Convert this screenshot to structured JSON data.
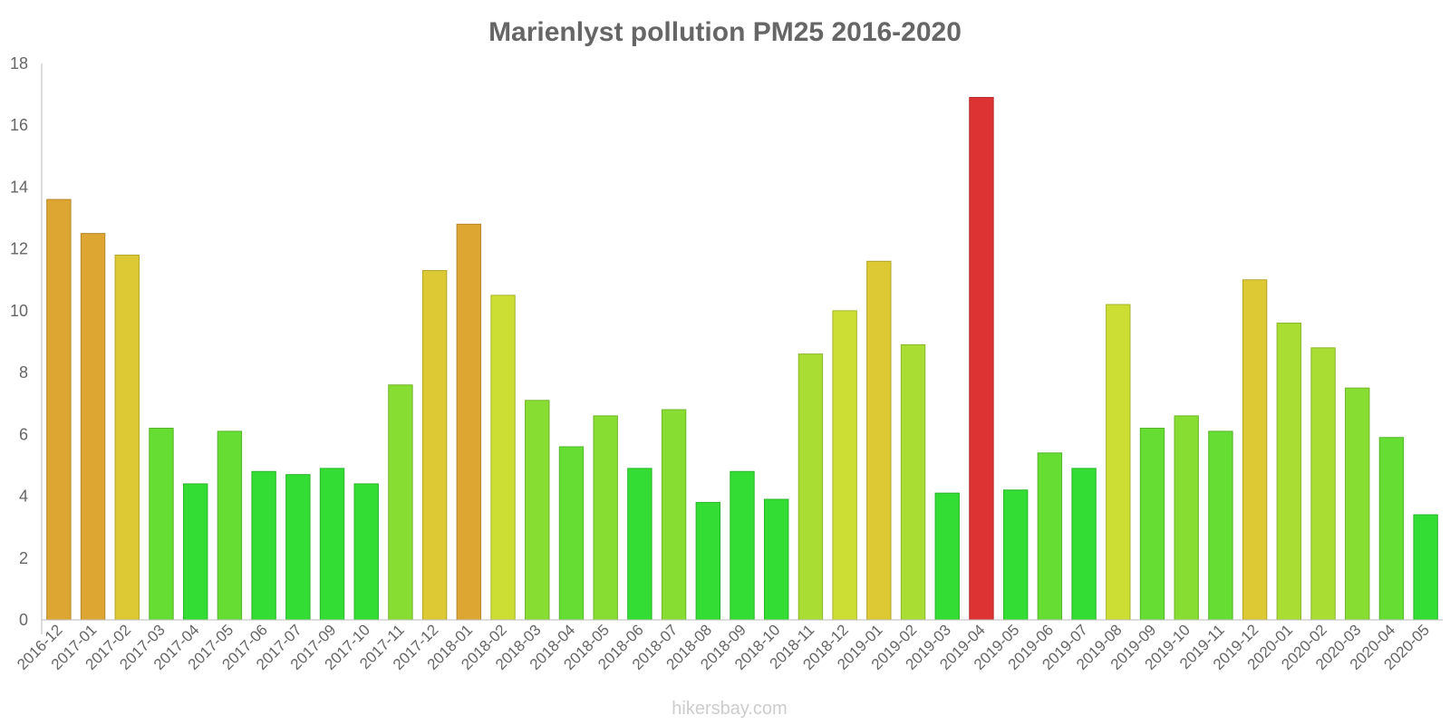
{
  "chart_data": {
    "type": "bar",
    "title": "Marienlyst pollution PM25 2016-2020",
    "xlabel": "",
    "ylabel": "",
    "ylim": [
      0,
      18
    ],
    "yticks": [
      0,
      2,
      4,
      6,
      8,
      10,
      12,
      14,
      16,
      18
    ],
    "grid": false,
    "categories": [
      "2016-12",
      "2017-01",
      "2017-02",
      "2017-03",
      "2017-04",
      "2017-05",
      "2017-06",
      "2017-07",
      "2017-09",
      "2017-10",
      "2017-11",
      "2017-12",
      "2018-01",
      "2018-02",
      "2018-03",
      "2018-04",
      "2018-05",
      "2018-06",
      "2018-07",
      "2018-08",
      "2018-09",
      "2018-10",
      "2018-11",
      "2018-12",
      "2019-01",
      "2019-02",
      "2019-03",
      "2019-04",
      "2019-05",
      "2019-06",
      "2019-07",
      "2019-08",
      "2019-09",
      "2019-10",
      "2019-11",
      "2019-12",
      "2020-01",
      "2020-02",
      "2020-03",
      "2020-04",
      "2020-05"
    ],
    "values": [
      13.6,
      12.5,
      11.8,
      6.2,
      4.4,
      6.1,
      4.8,
      4.7,
      4.9,
      4.4,
      7.6,
      11.3,
      12.8,
      10.5,
      7.1,
      5.6,
      6.6,
      4.9,
      6.8,
      3.8,
      4.8,
      3.9,
      8.6,
      10.0,
      11.6,
      8.9,
      4.1,
      16.9,
      4.2,
      5.4,
      4.9,
      10.2,
      6.2,
      6.6,
      6.1,
      11.0,
      9.6,
      8.8,
      7.5,
      5.9,
      3.4
    ],
    "colors": {
      "green": "#33dd33",
      "light_green": "#66dd33",
      "lime": "#88dd33",
      "yellow_green": "#aadd33",
      "yellow": "#ccdd33",
      "mustard": "#ddc933",
      "orange": "#dda633",
      "red": "#dd3333"
    }
  },
  "watermark": "hikersbay.com"
}
